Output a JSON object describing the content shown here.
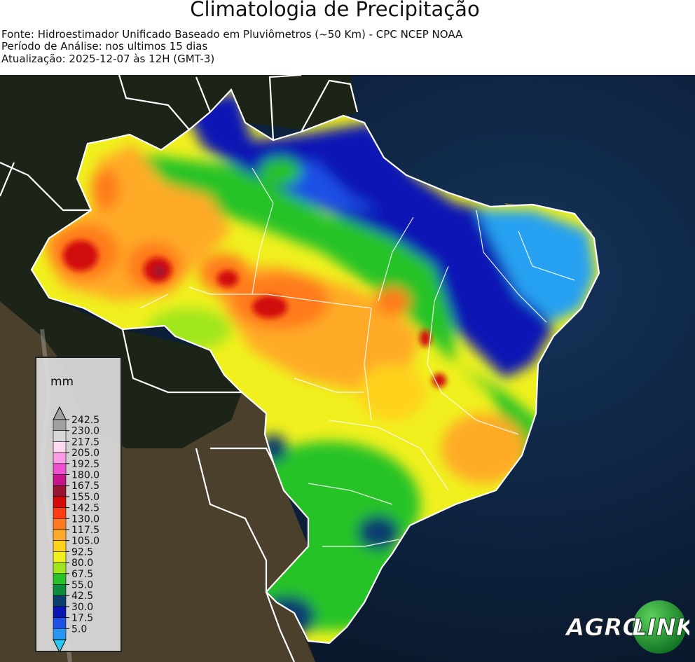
{
  "header": {
    "title": "Climatologia de Precipitação",
    "source": "Fonte: Hidroestimador Unificado Baseado em Pluviômetros (~50 Km) - CPC NCEP NOAA",
    "period": "Período de Análise: nos ultimos 15 dias",
    "updated": "Atualização: 2025-12-07 às 12H (GMT-3)"
  },
  "legend": {
    "unit": "mm",
    "levels": [
      {
        "label": "242.5",
        "color": "#a0a0a0"
      },
      {
        "label": "230.0",
        "color": "#d8d8d8"
      },
      {
        "label": "217.5",
        "color": "#ffd8f2"
      },
      {
        "label": "205.0",
        "color": "#ff9ce6"
      },
      {
        "label": "192.5",
        "color": "#f050d0"
      },
      {
        "label": "180.0",
        "color": "#c8148c"
      },
      {
        "label": "167.5",
        "color": "#961432"
      },
      {
        "label": "155.0",
        "color": "#d20a0a"
      },
      {
        "label": "142.5",
        "color": "#ff3c14"
      },
      {
        "label": "130.0",
        "color": "#ff7a1e"
      },
      {
        "label": "117.5",
        "color": "#ffaa28"
      },
      {
        "label": "105.0",
        "color": "#ffd21e"
      },
      {
        "label": "92.5",
        "color": "#f0f01e"
      },
      {
        "label": "80.0",
        "color": "#a0e61e"
      },
      {
        "label": "67.5",
        "color": "#28c328"
      },
      {
        "label": "55.0",
        "color": "#0a8c3c"
      },
      {
        "label": "42.5",
        "color": "#0a3c6e"
      },
      {
        "label": "30.0",
        "color": "#0a14b4"
      },
      {
        "label": "17.5",
        "color": "#1e50e6"
      },
      {
        "label": "5.0",
        "color": "#2896f0"
      }
    ],
    "below_color": "#28c8f0"
  },
  "logo": {
    "text_left": "AGRO",
    "text_right": "LINK"
  }
}
